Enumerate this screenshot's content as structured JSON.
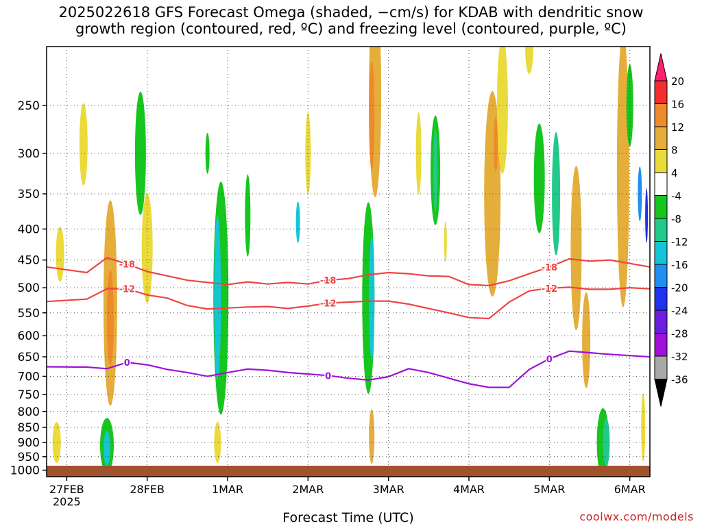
{
  "header": {
    "title_line1": "2025022618 GFS Forecast Omega (shaded, −cm/s) for KDAB with dendritic snow",
    "title_line2": "growth region (contoured, red, ºC) and freezing level (contoured, purple, ºC)"
  },
  "footer": {
    "xlabel": "Forecast Time (UTC)",
    "credit": "coolwx.com/models"
  },
  "chart_data": {
    "type": "heatmap",
    "title": "2025022618 GFS Forecast Omega (shaded, −cm/s) for KDAB with dendritic snow growth region (contoured, red, ºC) and freezing level (contoured, purple, ºC)",
    "xlabel": "Forecast Time (UTC)",
    "ylabel": "",
    "x_ticks": [
      "27FEB",
      "28FEB",
      "1MAR",
      "2MAR",
      "3MAR",
      "4MAR",
      "5MAR",
      "6MAR"
    ],
    "x_tick_sublabel": "2025",
    "x_tick_hours": [
      6,
      30,
      54,
      78,
      102,
      126,
      150,
      174
    ],
    "x_range_hours": [
      0,
      180
    ],
    "y_ticks": [
      250,
      300,
      350,
      400,
      450,
      500,
      550,
      600,
      650,
      700,
      750,
      800,
      850,
      900,
      950,
      1000
    ],
    "y_range_hpa": [
      200,
      1025
    ],
    "y_scale": "log-pressure",
    "grid": true,
    "colorbar": {
      "labels": [
        "20",
        "16",
        "12",
        "8",
        "4",
        "-4",
        "-8",
        "-12",
        "-16",
        "-20",
        "-24",
        "-28",
        "-32",
        "-36"
      ],
      "colors": [
        "#ff1f6f",
        "#f22e2e",
        "#ee8a2a",
        "#e5ad3a",
        "#eada3a",
        "#ffffff",
        "#17c51f",
        "#21c98a",
        "#14c5d8",
        "#1f8ff0",
        "#1f32ee",
        "#6a1fe0",
        "#a010d8",
        "#a8a8a8",
        "#000000"
      ]
    },
    "series": [
      {
        "name": "-18",
        "color": "#ee4444",
        "points": [
          [
            0,
            462
          ],
          [
            12,
            472
          ],
          [
            18,
            446
          ],
          [
            24,
            457
          ],
          [
            30,
            470
          ],
          [
            36,
            478
          ],
          [
            42,
            486
          ],
          [
            48,
            490
          ],
          [
            54,
            494
          ],
          [
            60,
            489
          ],
          [
            66,
            493
          ],
          [
            72,
            490
          ],
          [
            78,
            493
          ],
          [
            84,
            486
          ],
          [
            90,
            483
          ],
          [
            96,
            476
          ],
          [
            102,
            472
          ],
          [
            108,
            474
          ],
          [
            114,
            478
          ],
          [
            120,
            479
          ],
          [
            126,
            494
          ],
          [
            132,
            496
          ],
          [
            138,
            487
          ],
          [
            144,
            474
          ],
          [
            150,
            462
          ],
          [
            156,
            448
          ],
          [
            162,
            452
          ],
          [
            168,
            450
          ],
          [
            174,
            456
          ],
          [
            180,
            462
          ]
        ]
      },
      {
        "name": "-12",
        "color": "#ee4444",
        "points": [
          [
            0,
            527
          ],
          [
            12,
            522
          ],
          [
            18,
            502
          ],
          [
            24,
            502
          ],
          [
            30,
            514
          ],
          [
            36,
            520
          ],
          [
            42,
            535
          ],
          [
            48,
            542
          ],
          [
            54,
            540
          ],
          [
            60,
            538
          ],
          [
            66,
            537
          ],
          [
            72,
            541
          ],
          [
            78,
            536
          ],
          [
            84,
            530
          ],
          [
            90,
            528
          ],
          [
            96,
            526
          ],
          [
            102,
            526
          ],
          [
            108,
            532
          ],
          [
            114,
            541
          ],
          [
            120,
            550
          ],
          [
            126,
            560
          ],
          [
            132,
            562
          ],
          [
            138,
            528
          ],
          [
            144,
            506
          ],
          [
            150,
            501
          ],
          [
            156,
            499
          ],
          [
            162,
            503
          ],
          [
            168,
            503
          ],
          [
            174,
            500
          ],
          [
            180,
            502
          ]
        ]
      },
      {
        "name": "0",
        "color": "#a010d8",
        "points": [
          [
            0,
            675
          ],
          [
            12,
            676
          ],
          [
            18,
            680
          ],
          [
            24,
            664
          ],
          [
            30,
            670
          ],
          [
            36,
            682
          ],
          [
            42,
            690
          ],
          [
            48,
            700
          ],
          [
            54,
            690
          ],
          [
            60,
            681
          ],
          [
            66,
            684
          ],
          [
            72,
            690
          ],
          [
            78,
            694
          ],
          [
            84,
            698
          ],
          [
            90,
            705
          ],
          [
            96,
            710
          ],
          [
            102,
            701
          ],
          [
            108,
            680
          ],
          [
            114,
            690
          ],
          [
            120,
            705
          ],
          [
            126,
            720
          ],
          [
            132,
            730
          ],
          [
            138,
            730
          ],
          [
            144,
            682
          ],
          [
            150,
            655
          ],
          [
            156,
            636
          ],
          [
            162,
            640
          ],
          [
            168,
            644
          ],
          [
            174,
            647
          ],
          [
            180,
            650
          ]
        ]
      }
    ]
  }
}
